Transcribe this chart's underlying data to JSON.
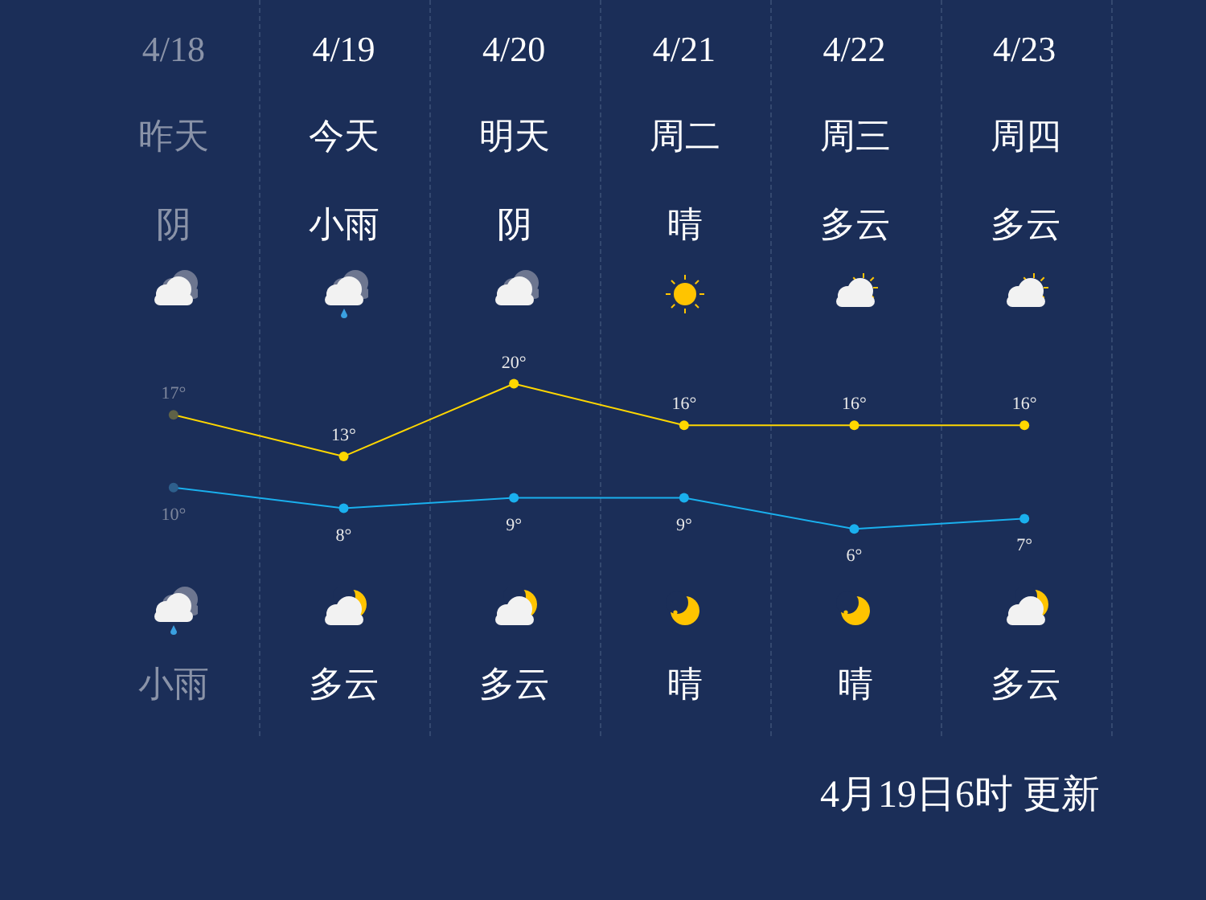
{
  "chart_data": {
    "type": "line",
    "categories": [
      "4/18",
      "4/19",
      "4/20",
      "4/21",
      "4/22",
      "4/23"
    ],
    "series": [
      {
        "color": "#ffd700",
        "colors": [
          "#5f6247",
          "#ffd700",
          "#ffd700",
          "#ffd700",
          "#ffd700",
          "#ffd700"
        ],
        "values": [
          17,
          13,
          20,
          16,
          16,
          16
        ],
        "value_labels": [
          "17°",
          "13°",
          "20°",
          "16°",
          "16°",
          "16°"
        ]
      },
      {
        "color": "#1ab0ee",
        "colors": [
          "#2e5f8c",
          "#1ab0ee",
          "#1ab0ee",
          "#1ab0ee",
          "#1ab0ee",
          "#1ab0ee"
        ],
        "values": [
          10,
          8,
          9,
          9,
          6,
          7
        ],
        "value_labels": [
          "10°",
          "8°",
          "9°",
          "9°",
          "6°",
          "7°"
        ]
      }
    ],
    "marker": "circle",
    "annotations": [
      "昨天",
      "今天",
      "明天",
      "周二",
      "周三",
      "周四",
      "阴",
      "小雨",
      "阴",
      "晴",
      "多云",
      "多云",
      "小雨",
      "多云",
      "多云",
      "晴",
      "晴",
      "多云",
      "4月19日6时 更新"
    ]
  }
}
